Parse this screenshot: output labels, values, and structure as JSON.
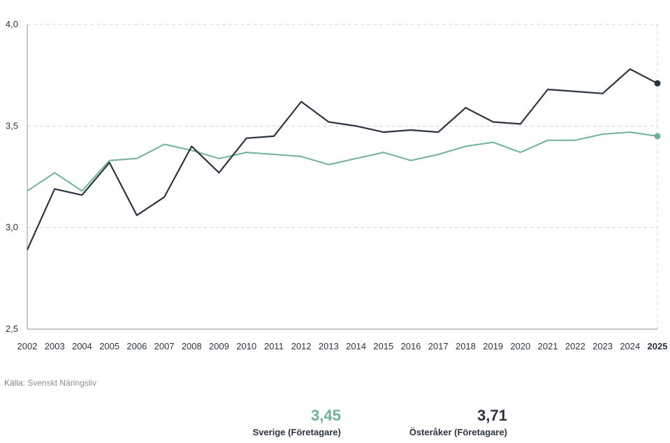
{
  "chart_data": {
    "type": "line",
    "x": [
      "2002",
      "2003",
      "2004",
      "2005",
      "2006",
      "2007",
      "2008",
      "2009",
      "2010",
      "2011",
      "2012",
      "2013",
      "2014",
      "2015",
      "2016",
      "2017",
      "2018",
      "2019",
      "2020",
      "2021",
      "2022",
      "2023",
      "2024",
      "2025"
    ],
    "highlight_x": "2025",
    "ylim": [
      2.5,
      4.0
    ],
    "yticks": [
      "2,5",
      "3,0",
      "3,5",
      "4,0"
    ],
    "ytick_values": [
      2.5,
      3.0,
      3.5,
      4.0
    ],
    "grid": "horizontal dashed",
    "series": [
      {
        "name": "Sverige (Företagare)",
        "color": "#6db394",
        "values": [
          3.18,
          3.27,
          3.18,
          3.33,
          3.34,
          3.41,
          3.38,
          3.34,
          3.37,
          3.36,
          3.35,
          3.31,
          3.34,
          3.37,
          3.33,
          3.36,
          3.4,
          3.42,
          3.37,
          3.43,
          3.43,
          3.46,
          3.47,
          3.45
        ]
      },
      {
        "name": "Österåker (Företagare)",
        "color": "#2b3440",
        "values": [
          2.89,
          3.19,
          3.16,
          3.32,
          3.06,
          3.15,
          3.4,
          3.27,
          3.44,
          3.45,
          3.62,
          3.52,
          3.5,
          3.47,
          3.48,
          3.47,
          3.59,
          3.52,
          3.51,
          3.68,
          3.67,
          3.66,
          3.78,
          3.71
        ]
      }
    ]
  },
  "source": {
    "label": "Källa:",
    "name": "Svenskt Näringsliv"
  },
  "legend": [
    {
      "value": "3,45",
      "label": "Sverige (Företagare)",
      "color": "#6db394"
    },
    {
      "value": "3,71",
      "label": "Österåker (Företagare)",
      "color": "#2b3440"
    }
  ]
}
